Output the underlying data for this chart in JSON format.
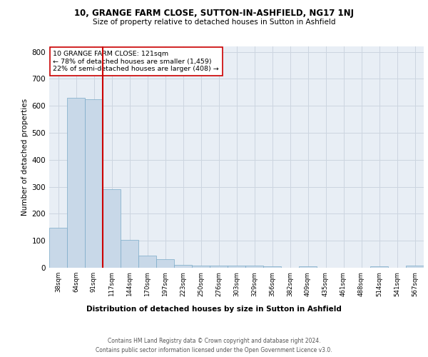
{
  "title1": "10, GRANGE FARM CLOSE, SUTTON-IN-ASHFIELD, NG17 1NJ",
  "title2": "Size of property relative to detached houses in Sutton in Ashfield",
  "xlabel": "Distribution of detached houses by size in Sutton in Ashfield",
  "ylabel": "Number of detached properties",
  "footer1": "Contains HM Land Registry data © Crown copyright and database right 2024.",
  "footer2": "Contains public sector information licensed under the Open Government Licence v3.0.",
  "categories": [
    "38sqm",
    "64sqm",
    "91sqm",
    "117sqm",
    "144sqm",
    "170sqm",
    "197sqm",
    "223sqm",
    "250sqm",
    "276sqm",
    "303sqm",
    "329sqm",
    "356sqm",
    "382sqm",
    "409sqm",
    "435sqm",
    "461sqm",
    "488sqm",
    "514sqm",
    "541sqm",
    "567sqm"
  ],
  "values": [
    148,
    630,
    623,
    290,
    102,
    46,
    31,
    10,
    9,
    9,
    8,
    7,
    6,
    0,
    5,
    0,
    0,
    0,
    5,
    0,
    8
  ],
  "bar_color": "#c8d8e8",
  "bar_edge_color": "#7aaac8",
  "red_line_color": "#cc0000",
  "annotation_text": "10 GRANGE FARM CLOSE: 121sqm\n← 78% of detached houses are smaller (1,459)\n22% of semi-detached houses are larger (408) →",
  "annotation_box_color": "#ffffff",
  "annotation_box_edge": "#cc0000",
  "ylim": [
    0,
    820
  ],
  "yticks": [
    0,
    100,
    200,
    300,
    400,
    500,
    600,
    700,
    800
  ],
  "grid_color": "#ccd5e0",
  "bg_color": "#e8eef5"
}
